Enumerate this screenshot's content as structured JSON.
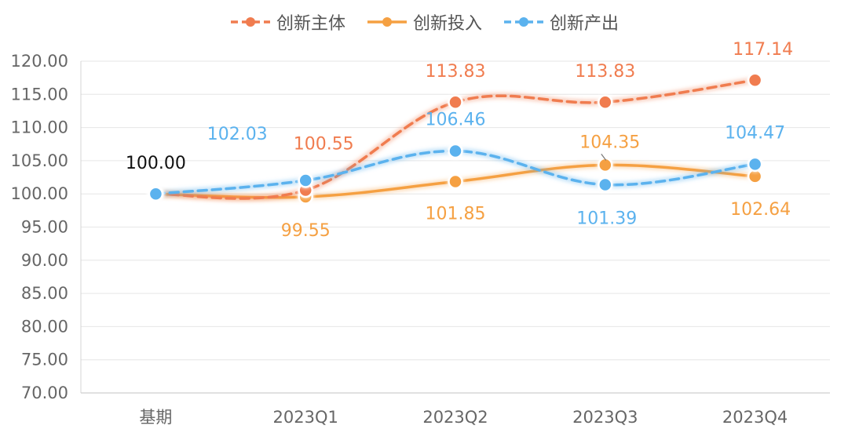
{
  "chart_data": {
    "type": "line",
    "title": "",
    "xlabel": "",
    "ylabel": "",
    "categories": [
      "基期",
      "2023Q1",
      "2023Q2",
      "2023Q3",
      "2023Q4"
    ],
    "ylim": [
      70,
      120
    ],
    "yticks": [
      "70.00",
      "75.00",
      "80.00",
      "85.00",
      "90.00",
      "95.00",
      "100.00",
      "105.00",
      "110.00",
      "115.00",
      "120.00"
    ],
    "grid": true,
    "legend_position": "top-center",
    "series": [
      {
        "name": "创新主体",
        "color": "#F07C4F",
        "dashed": true,
        "values": [
          100.0,
          100.55,
          113.83,
          113.83,
          117.14
        ],
        "labels": [
          "100.00",
          "100.55",
          "113.83",
          "113.83",
          "117.14"
        ]
      },
      {
        "name": "创新投入",
        "color": "#F5A042",
        "dashed": false,
        "values": [
          100.0,
          99.55,
          101.85,
          104.35,
          102.64
        ],
        "labels": [
          "",
          "99.55",
          "101.85",
          "104.35",
          "102.64"
        ]
      },
      {
        "name": "创新产出",
        "color": "#5BB2EE",
        "dashed": true,
        "values": [
          100.0,
          102.03,
          106.46,
          101.39,
          104.47
        ],
        "labels": [
          "",
          "102.03",
          "106.46",
          "101.39",
          "104.47"
        ]
      }
    ]
  }
}
